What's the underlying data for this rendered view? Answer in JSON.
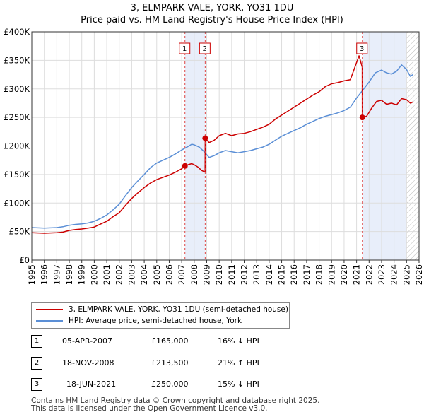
{
  "chart_data": {
    "type": "line",
    "title": "3, ELMPARK VALE, YORK, YO31 1DU",
    "subtitle": "Price paid vs. HM Land Registry's House Price Index (HPI)",
    "xlim": [
      1995,
      2026
    ],
    "ylim": [
      0,
      400000
    ],
    "x_ticks": [
      "1995",
      "1996",
      "1997",
      "1998",
      "1999",
      "2000",
      "2001",
      "2002",
      "2003",
      "2004",
      "2005",
      "2006",
      "2007",
      "2008",
      "2009",
      "2010",
      "2011",
      "2012",
      "2013",
      "2014",
      "2015",
      "2016",
      "2017",
      "2018",
      "2019",
      "2020",
      "2021",
      "2022",
      "2023",
      "2024",
      "2025",
      "2026"
    ],
    "y_ticks": [
      {
        "value": 0,
        "label": "£0"
      },
      {
        "value": 50000,
        "label": "£50K"
      },
      {
        "value": 100000,
        "label": "£100K"
      },
      {
        "value": 150000,
        "label": "£150K"
      },
      {
        "value": 200000,
        "label": "£200K"
      },
      {
        "value": 250000,
        "label": "£250K"
      },
      {
        "value": 300000,
        "label": "£300K"
      },
      {
        "value": 350000,
        "label": "£350K"
      },
      {
        "value": 400000,
        "label": "£400K"
      }
    ],
    "highlight_bands": [
      {
        "from": 2007.26,
        "to": 2008.88
      },
      {
        "from": 2021.46,
        "to": 2025.0
      }
    ],
    "hatch_from": 2025.0,
    "series": [
      {
        "name": "3, ELMPARK VALE, YORK, YO31 1DU (semi-detached house)",
        "color": "#cc0000",
        "points": [
          [
            1995.0,
            48000
          ],
          [
            1995.5,
            47500
          ],
          [
            1996.0,
            47000
          ],
          [
            1996.5,
            47500
          ],
          [
            1997.0,
            48000
          ],
          [
            1997.5,
            49000
          ],
          [
            1998.0,
            52000
          ],
          [
            1998.5,
            53500
          ],
          [
            1999.0,
            54500
          ],
          [
            1999.5,
            56000
          ],
          [
            2000.0,
            58000
          ],
          [
            2000.5,
            63000
          ],
          [
            2001.0,
            68000
          ],
          [
            2001.5,
            76000
          ],
          [
            2002.0,
            83000
          ],
          [
            2002.5,
            96000
          ],
          [
            2003.0,
            108000
          ],
          [
            2003.5,
            118000
          ],
          [
            2004.0,
            127000
          ],
          [
            2004.5,
            135000
          ],
          [
            2005.0,
            141000
          ],
          [
            2005.5,
            145000
          ],
          [
            2006.0,
            149000
          ],
          [
            2006.5,
            154000
          ],
          [
            2007.0,
            160000
          ],
          [
            2007.26,
            165000
          ],
          [
            2007.5,
            167000
          ],
          [
            2007.8,
            169000
          ],
          [
            2008.0,
            167000
          ],
          [
            2008.3,
            163000
          ],
          [
            2008.6,
            157000
          ],
          [
            2008.87,
            154000
          ],
          [
            2008.88,
            213500
          ],
          [
            2009.2,
            206000
          ],
          [
            2009.6,
            210000
          ],
          [
            2010.0,
            218000
          ],
          [
            2010.5,
            222000
          ],
          [
            2011.0,
            218000
          ],
          [
            2011.5,
            221000
          ],
          [
            2012.0,
            222000
          ],
          [
            2012.5,
            225000
          ],
          [
            2013.0,
            229000
          ],
          [
            2013.5,
            233000
          ],
          [
            2014.0,
            238000
          ],
          [
            2014.5,
            247000
          ],
          [
            2015.0,
            254000
          ],
          [
            2015.5,
            261000
          ],
          [
            2016.0,
            268000
          ],
          [
            2016.5,
            275000
          ],
          [
            2017.0,
            282000
          ],
          [
            2017.5,
            289000
          ],
          [
            2018.0,
            295000
          ],
          [
            2018.5,
            304000
          ],
          [
            2019.0,
            309000
          ],
          [
            2019.5,
            311000
          ],
          [
            2020.0,
            314000
          ],
          [
            2020.5,
            316000
          ],
          [
            2020.9,
            340000
          ],
          [
            2021.2,
            358000
          ],
          [
            2021.45,
            338000
          ],
          [
            2021.46,
            250000
          ],
          [
            2021.8,
            252000
          ],
          [
            2022.2,
            266000
          ],
          [
            2022.6,
            278000
          ],
          [
            2023.0,
            280000
          ],
          [
            2023.4,
            273000
          ],
          [
            2023.8,
            275000
          ],
          [
            2024.2,
            272000
          ],
          [
            2024.6,
            283000
          ],
          [
            2025.0,
            281000
          ],
          [
            2025.3,
            275000
          ],
          [
            2025.5,
            277000
          ]
        ]
      },
      {
        "name": "HPI: Average price, semi-detached house, York",
        "color": "#5b8fd6",
        "points": [
          [
            1995.0,
            57000
          ],
          [
            1995.5,
            56500
          ],
          [
            1996.0,
            56000
          ],
          [
            1996.5,
            56500
          ],
          [
            1997.0,
            57000
          ],
          [
            1997.5,
            58500
          ],
          [
            1998.0,
            61000
          ],
          [
            1998.5,
            62500
          ],
          [
            1999.0,
            63500
          ],
          [
            1999.5,
            65000
          ],
          [
            2000.0,
            68000
          ],
          [
            2000.5,
            73000
          ],
          [
            2001.0,
            79000
          ],
          [
            2001.5,
            88000
          ],
          [
            2002.0,
            98000
          ],
          [
            2002.5,
            113000
          ],
          [
            2003.0,
            127000
          ],
          [
            2003.5,
            139000
          ],
          [
            2004.0,
            150000
          ],
          [
            2004.5,
            162000
          ],
          [
            2005.0,
            170000
          ],
          [
            2005.5,
            175000
          ],
          [
            2006.0,
            180000
          ],
          [
            2006.5,
            186000
          ],
          [
            2007.0,
            193000
          ],
          [
            2007.5,
            199000
          ],
          [
            2007.8,
            203000
          ],
          [
            2008.0,
            202000
          ],
          [
            2008.4,
            198000
          ],
          [
            2008.8,
            190000
          ],
          [
            2009.2,
            180000
          ],
          [
            2009.6,
            183000
          ],
          [
            2010.0,
            188000
          ],
          [
            2010.5,
            192000
          ],
          [
            2011.0,
            190000
          ],
          [
            2011.5,
            188000
          ],
          [
            2012.0,
            190000
          ],
          [
            2012.5,
            192000
          ],
          [
            2013.0,
            195000
          ],
          [
            2013.5,
            198000
          ],
          [
            2014.0,
            203000
          ],
          [
            2014.5,
            210000
          ],
          [
            2015.0,
            217000
          ],
          [
            2015.5,
            222000
          ],
          [
            2016.0,
            227000
          ],
          [
            2016.5,
            232000
          ],
          [
            2017.0,
            238000
          ],
          [
            2017.5,
            243000
          ],
          [
            2018.0,
            248000
          ],
          [
            2018.5,
            252000
          ],
          [
            2019.0,
            255000
          ],
          [
            2019.5,
            258000
          ],
          [
            2020.0,
            262000
          ],
          [
            2020.5,
            268000
          ],
          [
            2021.0,
            284000
          ],
          [
            2021.5,
            298000
          ],
          [
            2022.0,
            312000
          ],
          [
            2022.5,
            328000
          ],
          [
            2023.0,
            333000
          ],
          [
            2023.4,
            328000
          ],
          [
            2023.8,
            326000
          ],
          [
            2024.2,
            331000
          ],
          [
            2024.6,
            342000
          ],
          [
            2025.0,
            334000
          ],
          [
            2025.3,
            322000
          ],
          [
            2025.5,
            325000
          ]
        ]
      }
    ],
    "sales": [
      {
        "marker": "1",
        "x": 2007.26,
        "price": 165000,
        "date": "05-APR-2007",
        "price_label": "£165,000",
        "hpi": "16% ↓ HPI"
      },
      {
        "marker": "2",
        "x": 2008.88,
        "price": 213500,
        "date": "18-NOV-2008",
        "price_label": "£213,500",
        "hpi": "21% ↑ HPI"
      },
      {
        "marker": "3",
        "x": 2021.46,
        "price": 250000,
        "date": "18-JUN-2021",
        "price_label": "£250,000",
        "hpi": "15% ↓ HPI"
      }
    ]
  },
  "legend": {
    "red_label": "3, ELMPARK VALE, YORK, YO31 1DU (semi-detached house)",
    "blue_label": "HPI: Average price, semi-detached house, York"
  },
  "footer": {
    "line1": "Contains HM Land Registry data © Crown copyright and database right 2025.",
    "line2": "This data is licensed under the Open Government Licence v3.0."
  }
}
